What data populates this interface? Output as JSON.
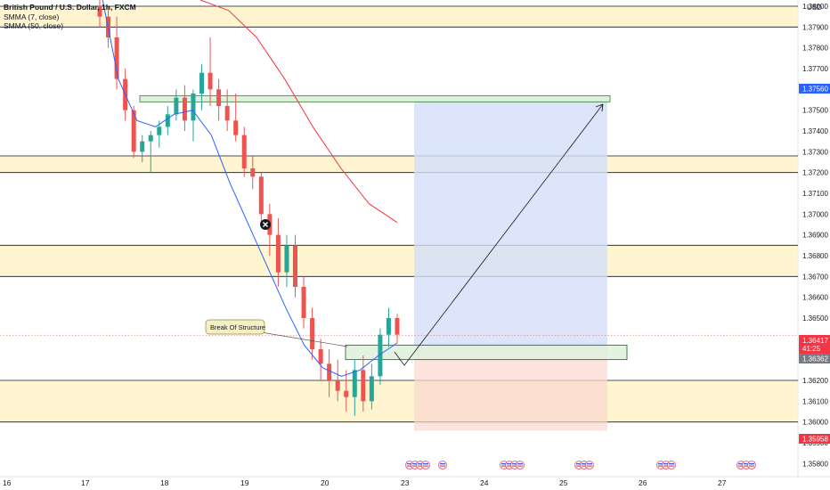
{
  "header": {
    "symbol_title": "British Pound / U.S. Dollar, 1h, FXCM",
    "indicator_1": "SMMA (7, close)",
    "indicator_2": "SMMA (50, close)",
    "currency": "USD"
  },
  "annotation": {
    "break_of_structure": "Break Of Structure"
  },
  "price_axis": {
    "ticks": [
      "1.38000",
      "1.37900",
      "1.37800",
      "1.37700",
      "1.37600",
      "1.37500",
      "1.37400",
      "1.37300",
      "1.37200",
      "1.37100",
      "1.37000",
      "1.36900",
      "1.36800",
      "1.36700",
      "1.36600",
      "1.36500",
      "1.36300",
      "1.36200",
      "1.36100",
      "1.36000",
      "1.35900",
      "1.35800"
    ],
    "badges": {
      "target": "1.37560",
      "current_price": "1.36417",
      "countdown": "41:25",
      "entry": "1.36362",
      "stop": "1.35958"
    }
  },
  "time_axis": {
    "labels": [
      "16",
      "17",
      "18",
      "19",
      "20",
      "23",
      "24",
      "25",
      "26",
      "27"
    ]
  },
  "colors": {
    "bull": "#26a69a",
    "bear": "#ef5350",
    "smma_fast": "#2962ff",
    "smma_slow": "#f23645",
    "zone_fill": "#fff3c4",
    "target_zone": "#d3def9",
    "stop_zone": "#fbd7cf",
    "entry_box": "#dff0dc"
  },
  "chart_data": {
    "type": "candlestick",
    "timeframe": "1h",
    "symbol": "GBPUSD",
    "ylim": [
      1.3575,
      1.3803
    ],
    "x_ticks": [
      "16",
      "17",
      "18",
      "19",
      "20",
      "23",
      "24",
      "25",
      "26",
      "27"
    ],
    "candles": [
      {
        "o": 1.38,
        "h": 1.3805,
        "l": 1.379,
        "c": 1.3795
      },
      {
        "o": 1.3795,
        "h": 1.38,
        "l": 1.378,
        "c": 1.3785
      },
      {
        "o": 1.3785,
        "h": 1.3795,
        "l": 1.376,
        "c": 1.3765
      },
      {
        "o": 1.3765,
        "h": 1.377,
        "l": 1.3745,
        "c": 1.375
      },
      {
        "o": 1.375,
        "h": 1.3752,
        "l": 1.3727,
        "c": 1.373
      },
      {
        "o": 1.373,
        "h": 1.3738,
        "l": 1.3725,
        "c": 1.3735
      },
      {
        "o": 1.3735,
        "h": 1.374,
        "l": 1.372,
        "c": 1.3738
      },
      {
        "o": 1.3738,
        "h": 1.3745,
        "l": 1.3732,
        "c": 1.3742
      },
      {
        "o": 1.3742,
        "h": 1.3752,
        "l": 1.3738,
        "c": 1.3748
      },
      {
        "o": 1.3748,
        "h": 1.376,
        "l": 1.3745,
        "c": 1.3756
      },
      {
        "o": 1.3756,
        "h": 1.3762,
        "l": 1.374,
        "c": 1.3745
      },
      {
        "o": 1.3745,
        "h": 1.376,
        "l": 1.3735,
        "c": 1.3758
      },
      {
        "o": 1.3758,
        "h": 1.3772,
        "l": 1.375,
        "c": 1.3768
      },
      {
        "o": 1.3768,
        "h": 1.3785,
        "l": 1.3752,
        "c": 1.376
      },
      {
        "o": 1.376,
        "h": 1.3765,
        "l": 1.3745,
        "c": 1.3752
      },
      {
        "o": 1.3752,
        "h": 1.376,
        "l": 1.374,
        "c": 1.3745
      },
      {
        "o": 1.3745,
        "h": 1.3758,
        "l": 1.3735,
        "c": 1.3738
      },
      {
        "o": 1.3738,
        "h": 1.3742,
        "l": 1.3718,
        "c": 1.3722
      },
      {
        "o": 1.3722,
        "h": 1.3728,
        "l": 1.3712,
        "c": 1.3718
      },
      {
        "o": 1.3718,
        "h": 1.372,
        "l": 1.3695,
        "c": 1.37
      },
      {
        "o": 1.37,
        "h": 1.3705,
        "l": 1.368,
        "c": 1.369
      },
      {
        "o": 1.369,
        "h": 1.3698,
        "l": 1.3665,
        "c": 1.3672
      },
      {
        "o": 1.3672,
        "h": 1.369,
        "l": 1.3665,
        "c": 1.3685
      },
      {
        "o": 1.3685,
        "h": 1.369,
        "l": 1.366,
        "c": 1.3665
      },
      {
        "o": 1.3665,
        "h": 1.367,
        "l": 1.3645,
        "c": 1.365
      },
      {
        "o": 1.365,
        "h": 1.3655,
        "l": 1.363,
        "c": 1.3635
      },
      {
        "o": 1.3635,
        "h": 1.364,
        "l": 1.362,
        "c": 1.3628
      },
      {
        "o": 1.3628,
        "h": 1.3635,
        "l": 1.3612,
        "c": 1.362
      },
      {
        "o": 1.362,
        "h": 1.363,
        "l": 1.361,
        "c": 1.3615
      },
      {
        "o": 1.3615,
        "h": 1.3625,
        "l": 1.3605,
        "c": 1.3612
      },
      {
        "o": 1.3612,
        "h": 1.363,
        "l": 1.3603,
        "c": 1.3625
      },
      {
        "o": 1.3625,
        "h": 1.3632,
        "l": 1.3605,
        "c": 1.361
      },
      {
        "o": 1.361,
        "h": 1.3628,
        "l": 1.3606,
        "c": 1.3622
      },
      {
        "o": 1.3622,
        "h": 1.3645,
        "l": 1.3618,
        "c": 1.3642
      },
      {
        "o": 1.3642,
        "h": 1.3655,
        "l": 1.3636,
        "c": 1.365
      },
      {
        "o": 1.365,
        "h": 1.3652,
        "l": 1.3638,
        "c": 1.3642
      }
    ],
    "smma_7_anchor_values": [
      1.381,
      1.3765,
      1.3745,
      1.3742,
      1.3748,
      1.375,
      1.3738,
      1.3715,
      1.3695,
      1.3675,
      1.3655,
      1.3637,
      1.3626,
      1.3622,
      1.3625,
      1.3632,
      1.3638
    ],
    "smma_50_anchor_values": [
      1.3803,
      1.3798,
      1.3785,
      1.3765,
      1.3742,
      1.3722,
      1.3705,
      1.3696
    ],
    "zones": [
      {
        "from": 1.379,
        "to": 1.38
      },
      {
        "from": 1.372,
        "to": 1.3728
      },
      {
        "from": 1.367,
        "to": 1.3685
      },
      {
        "from": 1.36,
        "to": 1.362
      }
    ],
    "position": {
      "target": 1.3756,
      "entry": 1.36362,
      "stop": 1.35958
    },
    "entry_box": {
      "from": 1.363,
      "to": 1.3637
    },
    "resistance_box": {
      "from": 1.3754,
      "to": 1.3757
    }
  }
}
